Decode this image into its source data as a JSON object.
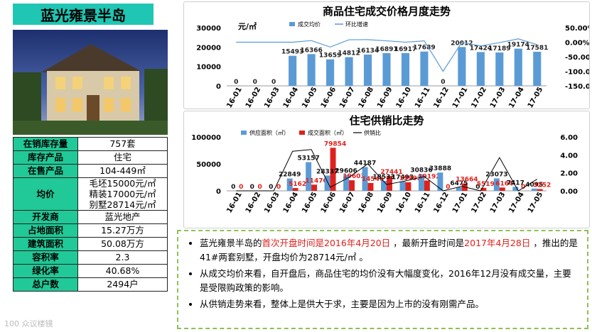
{
  "page_title": "蓝光雍景半岛",
  "info_table": [
    {
      "key": "在销库存量",
      "value": "757套"
    },
    {
      "key": "库存产品",
      "value": "住宅"
    },
    {
      "key": "在售产品",
      "value": "104-449㎡"
    },
    {
      "key": "均价",
      "value_lines": [
        "毛坯15000元/㎡",
        "精装17000元/㎡",
        "别墅28714元/㎡"
      ]
    },
    {
      "key": "开发商",
      "value": "蓝光地产"
    },
    {
      "key": "占地面积",
      "value": "15.27万方"
    },
    {
      "key": "建筑面积",
      "value": "50.08万方"
    },
    {
      "key": "容积率",
      "value": "2.3"
    },
    {
      "key": "绿化率",
      "value": "40.68%"
    },
    {
      "key": "总户数",
      "value": "2494户"
    }
  ],
  "watermark_text": "100 众议楼镜",
  "chart_data": [
    {
      "type": "bar",
      "title": "商品住宅成交价格月度走势",
      "unit_label": "元/㎡",
      "legend": [
        "成交均价",
        "环比增速"
      ],
      "categories": [
        "16-01",
        "16-02",
        "16-03",
        "16-04",
        "16-05",
        "16-06",
        "16-07",
        "16-08",
        "16-09",
        "16-10",
        "16-11",
        "16-12",
        "17-01",
        "17-02",
        "17-03",
        "17-04",
        "17-05"
      ],
      "series": [
        {
          "name": "成交均价",
          "kind": "bar",
          "color": "#5b9bd5",
          "values": [
            0,
            0,
            0,
            15493,
            16366,
            13659,
            14812,
            16134,
            16891,
            16917,
            17689,
            0,
            20012,
            17424,
            17189,
            19174,
            17581
          ]
        },
        {
          "name": "环比增速",
          "kind": "line",
          "color": "#5b9bd5",
          "values": [
            0,
            0,
            0,
            0,
            5.6,
            -16.5,
            8.4,
            8.9,
            4.7,
            0.2,
            4.6,
            -100,
            0,
            -12.9,
            -1.3,
            11.5,
            -8.3
          ]
        }
      ],
      "y_left": {
        "min": 0,
        "max": 30000,
        "ticks": [
          "0",
          "10000",
          "20000",
          "30000"
        ]
      },
      "y_right": {
        "min": -150,
        "max": 50,
        "ticks": [
          "50.00%",
          "0.00%",
          "-50.00%",
          "-100.00%",
          "-150.00%"
        ]
      }
    },
    {
      "type": "bar",
      "title": "住宅供销比走势",
      "legend": [
        "供应面积（㎡）",
        "成交面积（㎡）",
        "供销比"
      ],
      "categories": [
        "16-01",
        "16-02",
        "16-03",
        "16-04",
        "16-05",
        "16-06",
        "16-07",
        "16-08",
        "16-09",
        "16-10",
        "16-11",
        "16-12",
        "17-01",
        "17-02",
        "17-03",
        "17-04",
        "17-05"
      ],
      "series": [
        {
          "name": "供应面积（㎡）",
          "kind": "bar",
          "color": "#5b9bd5",
          "values": [
            0,
            0,
            0,
            22849,
            53157,
            28337,
            29606,
            44187,
            18533,
            17493,
            30836,
            33888,
            6475,
            0,
            23073,
            7417,
            4095
          ]
        },
        {
          "name": "成交面积（㎡）",
          "kind": "bar",
          "color": "#e0201c",
          "values": [
            0,
            0,
            0,
            5162,
            11470,
            79854,
            19603,
            14546,
            27441,
            15992,
            19192,
            0,
            13664,
            5519,
            6164,
            0,
            3252
          ]
        },
        {
          "name": "供销比",
          "kind": "line",
          "color": "#000000",
          "values": [
            0,
            0,
            0,
            4.4,
            4.6,
            0.4,
            1.5,
            3.0,
            0.7,
            1.1,
            1.6,
            0,
            0.5,
            0,
            3.7,
            0,
            1.3
          ]
        }
      ],
      "y_left": {
        "min": 0,
        "max": 100000,
        "ticks": [
          "0",
          "50000",
          "100000"
        ]
      },
      "y_right": {
        "min": 0,
        "max": 6,
        "ticks": [
          "0.00",
          "2.00",
          "4.00",
          "6.00"
        ]
      }
    }
  ],
  "notes": [
    {
      "parts": [
        {
          "t": "蓝光雍景半岛的"
        },
        {
          "t": "首次开盘时间是2016年4月20日",
          "red": true
        },
        {
          "t": " ，最新开盘时间是"
        },
        {
          "t": "2017年4月28日",
          "red": true
        },
        {
          "t": " ，推出的是41#两套别墅，开盘均价为28714元/㎡ 。"
        }
      ]
    },
    {
      "parts": [
        {
          "t": "从成交均价来看，自开盘后，商品住宅的均价没有大幅度变化，2016年12月没有成交量，主要是受限购政策的影响。"
        }
      ]
    },
    {
      "parts": [
        {
          "t": "从供销走势来看，整体上是供大于求，主要是因为上市的没有刚需产品。"
        }
      ]
    }
  ]
}
